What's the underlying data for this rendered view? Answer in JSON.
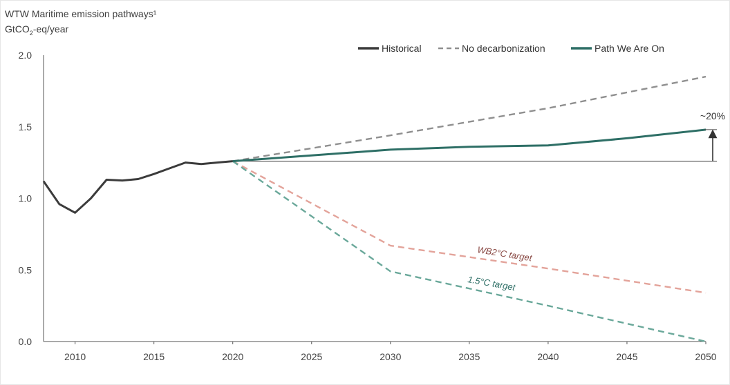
{
  "title": "WTW Maritime emission pathways¹",
  "unit_prefix": "GtCO",
  "unit_sub": "2",
  "unit_suffix": "-eq/year",
  "colors": {
    "historical": "#3b3b3b",
    "no_decarbonization": "#8f8f8f",
    "path_we_are_on": "#2e6f66",
    "wb2": "#e3a39a",
    "wb2_label": "#8a4a45",
    "t15": "#6aa89a",
    "t15_label": "#2e6f66",
    "axis": "#555555"
  },
  "chart_data": {
    "type": "line",
    "xlim": [
      2008,
      2050
    ],
    "ylim": [
      0,
      2
    ],
    "xticks": [
      2010,
      2015,
      2020,
      2025,
      2030,
      2035,
      2040,
      2045,
      2050
    ],
    "yticks": [
      "0.0",
      "0.5",
      "1.0",
      "1.5",
      "2.0"
    ],
    "legend": {
      "placement": "top-right"
    },
    "series": [
      {
        "name": "Historical",
        "key": "historical",
        "style": "solid",
        "x": [
          2008,
          2009,
          2010,
          2011,
          2012,
          2013,
          2014,
          2015,
          2016,
          2017,
          2018,
          2019,
          2020
        ],
        "y": [
          1.12,
          0.96,
          0.9,
          1.0,
          1.13,
          1.125,
          1.135,
          1.17,
          1.21,
          1.25,
          1.24,
          1.25,
          1.26
        ]
      },
      {
        "name": "No decarbonization",
        "key": "no_decarbonization",
        "style": "dashed",
        "x": [
          2020,
          2030,
          2040,
          2050
        ],
        "y": [
          1.26,
          1.44,
          1.63,
          1.85
        ]
      },
      {
        "name": "Path We Are On",
        "key": "path_we_are_on",
        "style": "solid",
        "x": [
          2020,
          2025,
          2030,
          2035,
          2040,
          2045,
          2050
        ],
        "y": [
          1.26,
          1.3,
          1.34,
          1.36,
          1.37,
          1.42,
          1.48
        ]
      },
      {
        "name": "WB2°C target",
        "key": "wb2",
        "style": "dashed",
        "x": [
          2020,
          2030,
          2040,
          2050
        ],
        "y": [
          1.26,
          0.67,
          0.51,
          0.34
        ]
      },
      {
        "name": "1.5°C target",
        "key": "t15",
        "style": "dashed",
        "x": [
          2020,
          2030,
          2040,
          2050
        ],
        "y": [
          1.26,
          0.49,
          0.25,
          0.0
        ]
      }
    ],
    "reference_line": {
      "y": 1.26,
      "x_from": 2020,
      "x_to": 2050
    },
    "annotations": {
      "increase": "~20%",
      "wb2_label": "WB2°C target",
      "t15_label": "1.5°C target"
    }
  }
}
